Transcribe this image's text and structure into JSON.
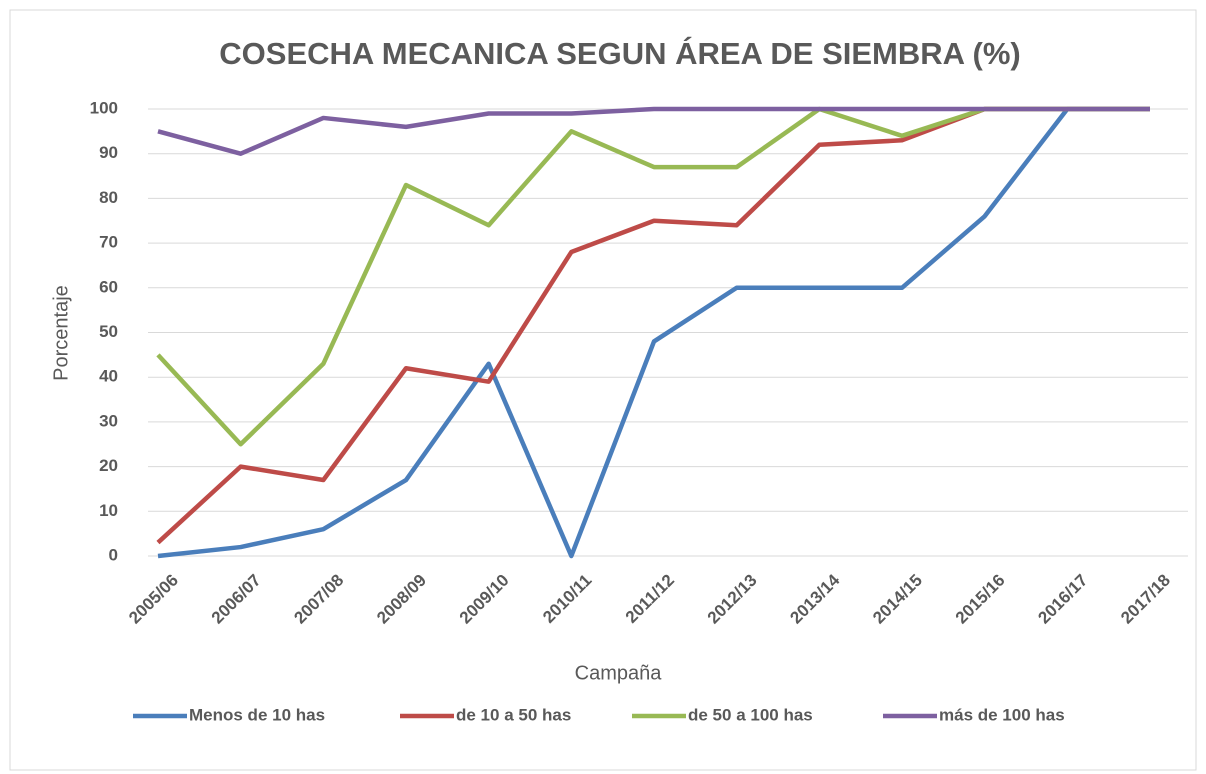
{
  "chart_data": {
    "type": "line",
    "title": "COSECHA MECANICA SEGUN ÁREA DE SIEMBRA (%)",
    "x_label": "Campaña",
    "y_label": "Porcentaje",
    "categories": [
      "2005/06",
      "2006/07",
      "2007/08",
      "2008/09",
      "2009/10",
      "2010/11",
      "2011/12",
      "2012/13",
      "2013/14",
      "2014/15",
      "2015/16",
      "2016/17",
      "2017/18"
    ],
    "series": [
      {
        "name": "Menos de 10 has",
        "color": "#4a7ebb",
        "values": [
          0,
          2,
          6,
          17,
          43,
          0,
          48,
          60,
          60,
          60,
          76,
          100,
          100
        ]
      },
      {
        "name": "de 10 a 50 has",
        "color": "#be4b48",
        "values": [
          3,
          20,
          17,
          42,
          39,
          68,
          75,
          74,
          92,
          93,
          100,
          100,
          100
        ]
      },
      {
        "name": "de 50 a 100 has",
        "color": "#98b954",
        "values": [
          45,
          25,
          43,
          83,
          74,
          95,
          87,
          87,
          100,
          94,
          100,
          100,
          100
        ]
      },
      {
        "name": "más de 100 has",
        "color": "#7d60a0",
        "values": [
          95,
          90,
          98,
          96,
          99,
          99,
          100,
          100,
          100,
          100,
          100,
          100,
          100
        ]
      }
    ],
    "ylim": [
      0,
      100
    ],
    "yticks": [
      0,
      10,
      20,
      30,
      40,
      50,
      60,
      70,
      80,
      90,
      100
    ],
    "grid": true,
    "legend": "bottom"
  }
}
